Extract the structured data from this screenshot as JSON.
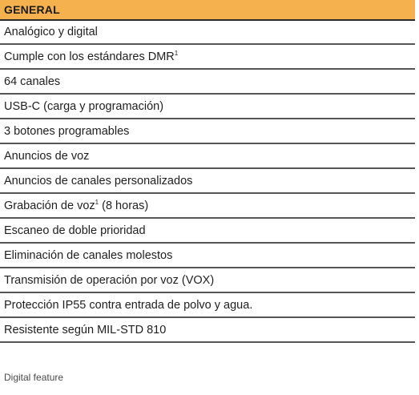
{
  "table": {
    "header": "GENERAL",
    "rows": [
      {
        "text": "Analógico y digital",
        "sup": ""
      },
      {
        "text": "Cumple con los estándares DMR",
        "sup": "1"
      },
      {
        "text": "64 canales",
        "sup": ""
      },
      {
        "text": "USB-C (carga y programación)",
        "sup": ""
      },
      {
        "text": "3 botones programables",
        "sup": ""
      },
      {
        "text": "Anuncios de voz",
        "sup": ""
      },
      {
        "text": "Anuncios de canales personalizados",
        "sup": ""
      },
      {
        "text": "Grabación de voz",
        "sup": "1",
        "suffix": " (8 horas)"
      },
      {
        "text": "Escaneo de doble prioridad",
        "sup": ""
      },
      {
        "text": "Eliminación de canales molestos",
        "sup": ""
      },
      {
        "text": "Transmisión de operación por voz (VOX)",
        "sup": ""
      },
      {
        "text": "Protección IP55 contra entrada de polvo y agua.",
        "sup": ""
      },
      {
        "text": "Resistente según MIL-STD 810",
        "sup": ""
      }
    ],
    "header_color": "#f5b14e"
  },
  "footnote": "Digital feature"
}
